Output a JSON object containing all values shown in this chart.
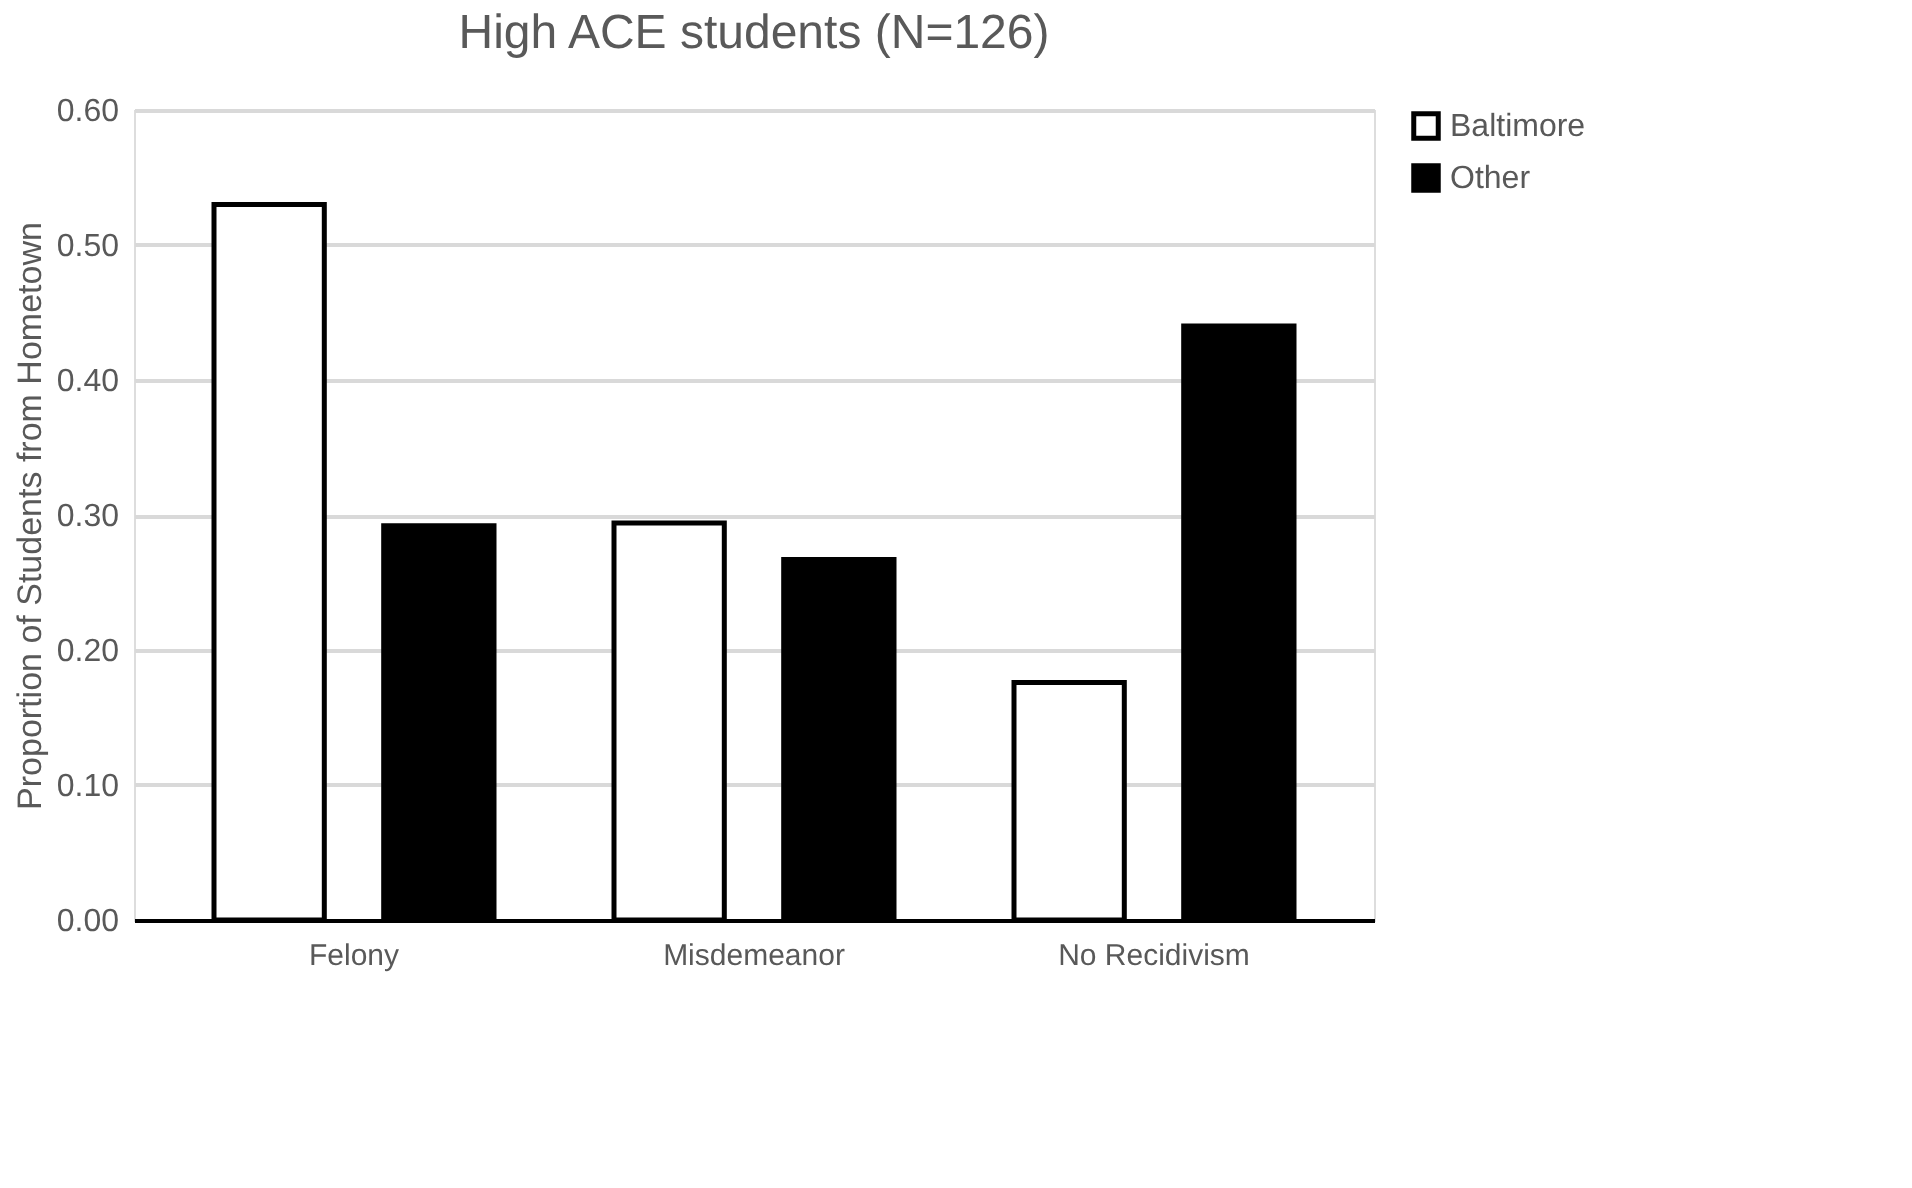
{
  "chart_data": {
    "type": "bar",
    "title": "High ACE students (N=126)",
    "ylabel": "Proportion of Students from Hometown",
    "categories": [
      "Felony",
      "Misdemeanor",
      "No Recidivism"
    ],
    "series": [
      {
        "name": "Baltimore",
        "color": "#ffffff",
        "values": [
          0.53,
          0.294,
          0.176
        ]
      },
      {
        "name": "Other",
        "color": "#000000",
        "values": [
          0.292,
          0.267,
          0.44
        ]
      }
    ],
    "ylim": [
      0,
      0.6
    ],
    "yticks": [
      {
        "value": 0,
        "label": "0.00"
      },
      {
        "value": 0.1,
        "label": "0.10"
      },
      {
        "value": 0.2,
        "label": "0.20"
      },
      {
        "value": 0.3,
        "label": "0.30"
      },
      {
        "value": 0.4,
        "label": "0.40"
      },
      {
        "value": 0.5,
        "label": "0.50"
      },
      {
        "value": 0.6,
        "label": "0.60"
      }
    ],
    "grid": "y",
    "legend": "right"
  }
}
